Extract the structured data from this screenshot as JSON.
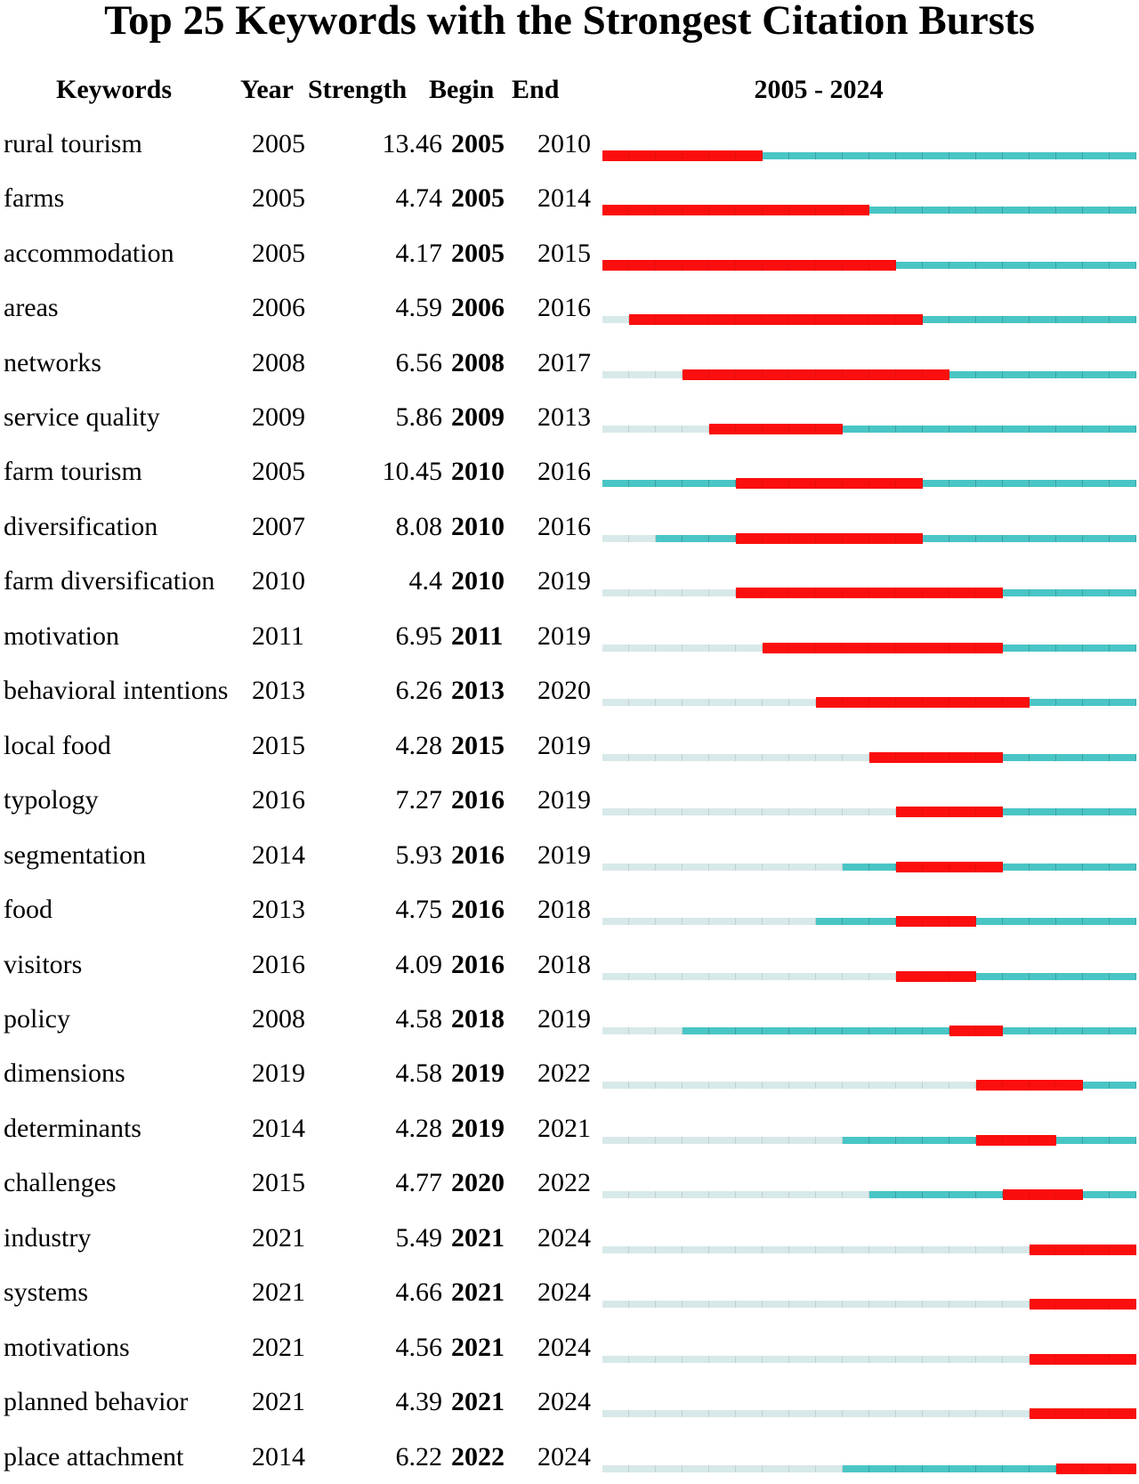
{
  "title": "Top 25 Keywords with the Strongest Citation Bursts",
  "header": {
    "keywords": "Keywords",
    "year": "Year",
    "strength": "Strength",
    "begin": "Begin",
    "end": "End",
    "timeline": "2005 - 2024"
  },
  "chart_data": {
    "type": "table",
    "title": "Top 25 Keywords with the Strongest Citation Bursts",
    "columns": [
      "Keywords",
      "Year",
      "Strength",
      "Begin",
      "End",
      "2005 - 2024"
    ],
    "timeline": {
      "start_year": 2005,
      "end_year": 2024,
      "label": "2005 - 2024"
    },
    "segment_colors": {
      "before_first_appearance": "#D8E9E9",
      "active_non_burst": "#4AC5C5",
      "burst": "#FA0E0E"
    },
    "segment_legend": {
      "pale": "years before keyword first appearance",
      "active": "years keyword present without burst",
      "burst": "citation burst period (Begin-End inclusive)"
    },
    "rows": [
      {
        "keyword": "rural tourism",
        "year": 2005,
        "strength": "13.46",
        "begin": 2005,
        "end": 2010
      },
      {
        "keyword": "farms",
        "year": 2005,
        "strength": "4.74",
        "begin": 2005,
        "end": 2014
      },
      {
        "keyword": "accommodation",
        "year": 2005,
        "strength": "4.17",
        "begin": 2005,
        "end": 2015
      },
      {
        "keyword": "areas",
        "year": 2006,
        "strength": "4.59",
        "begin": 2006,
        "end": 2016
      },
      {
        "keyword": "networks",
        "year": 2008,
        "strength": "6.56",
        "begin": 2008,
        "end": 2017
      },
      {
        "keyword": "service quality",
        "year": 2009,
        "strength": "5.86",
        "begin": 2009,
        "end": 2013
      },
      {
        "keyword": "farm tourism",
        "year": 2005,
        "strength": "10.45",
        "begin": 2010,
        "end": 2016
      },
      {
        "keyword": "diversification",
        "year": 2007,
        "strength": "8.08",
        "begin": 2010,
        "end": 2016
      },
      {
        "keyword": "farm diversification",
        "year": 2010,
        "strength": "4.4",
        "begin": 2010,
        "end": 2019
      },
      {
        "keyword": "motivation",
        "year": 2011,
        "strength": "6.95",
        "begin": 2011,
        "end": 2019
      },
      {
        "keyword": "behavioral intentions",
        "year": 2013,
        "strength": "6.26",
        "begin": 2013,
        "end": 2020
      },
      {
        "keyword": "local food",
        "year": 2015,
        "strength": "4.28",
        "begin": 2015,
        "end": 2019
      },
      {
        "keyword": "typology",
        "year": 2016,
        "strength": "7.27",
        "begin": 2016,
        "end": 2019
      },
      {
        "keyword": "segmentation",
        "year": 2014,
        "strength": "5.93",
        "begin": 2016,
        "end": 2019
      },
      {
        "keyword": "food",
        "year": 2013,
        "strength": "4.75",
        "begin": 2016,
        "end": 2018
      },
      {
        "keyword": "visitors",
        "year": 2016,
        "strength": "4.09",
        "begin": 2016,
        "end": 2018
      },
      {
        "keyword": "policy",
        "year": 2008,
        "strength": "4.58",
        "begin": 2018,
        "end": 2019
      },
      {
        "keyword": "dimensions",
        "year": 2019,
        "strength": "4.58",
        "begin": 2019,
        "end": 2022
      },
      {
        "keyword": "determinants",
        "year": 2014,
        "strength": "4.28",
        "begin": 2019,
        "end": 2021
      },
      {
        "keyword": "challenges",
        "year": 2015,
        "strength": "4.77",
        "begin": 2020,
        "end": 2022
      },
      {
        "keyword": "industry",
        "year": 2021,
        "strength": "5.49",
        "begin": 2021,
        "end": 2024
      },
      {
        "keyword": "systems",
        "year": 2021,
        "strength": "4.66",
        "begin": 2021,
        "end": 2024
      },
      {
        "keyword": "motivations",
        "year": 2021,
        "strength": "4.56",
        "begin": 2021,
        "end": 2024
      },
      {
        "keyword": "planned behavior",
        "year": 2021,
        "strength": "4.39",
        "begin": 2021,
        "end": 2024
      },
      {
        "keyword": "place attachment",
        "year": 2014,
        "strength": "6.22",
        "begin": 2022,
        "end": 2024
      }
    ]
  }
}
